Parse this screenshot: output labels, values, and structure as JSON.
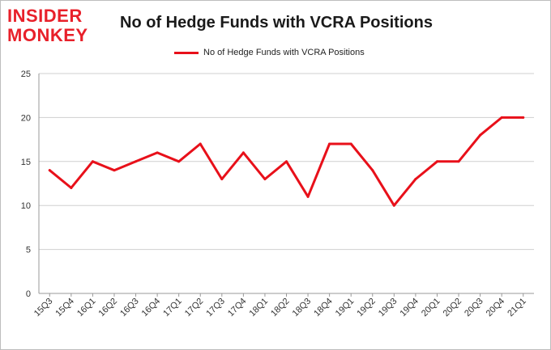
{
  "logo": {
    "top": "INSIDER",
    "bottom": "MONKEY"
  },
  "colors": {
    "line": "#e8101a",
    "grid": "#cfcfcf",
    "logo": "#e8202a"
  },
  "chart_data": {
    "type": "line",
    "title": "No of Hedge Funds with VCRA Positions",
    "xlabel": "",
    "ylabel": "",
    "ylim": [
      0,
      25
    ],
    "yticks": [
      0,
      5,
      10,
      15,
      20,
      25
    ],
    "grid": true,
    "legend_position": "top-center",
    "categories": [
      "15Q3",
      "15Q4",
      "16Q1",
      "16Q2",
      "16Q3",
      "16Q4",
      "17Q1",
      "17Q2",
      "17Q3",
      "17Q4",
      "18Q1",
      "18Q2",
      "18Q3",
      "18Q4",
      "19Q1",
      "19Q2",
      "19Q3",
      "19Q4",
      "20Q1",
      "20Q2",
      "20Q3",
      "20Q4",
      "21Q1"
    ],
    "series": [
      {
        "name": "No of Hedge Funds with VCRA Positions",
        "values": [
          14,
          12,
          15,
          14,
          15,
          16,
          15,
          17,
          13,
          16,
          13,
          15,
          11,
          17,
          17,
          14,
          10,
          13,
          15,
          15,
          18,
          20,
          20
        ]
      }
    ]
  }
}
